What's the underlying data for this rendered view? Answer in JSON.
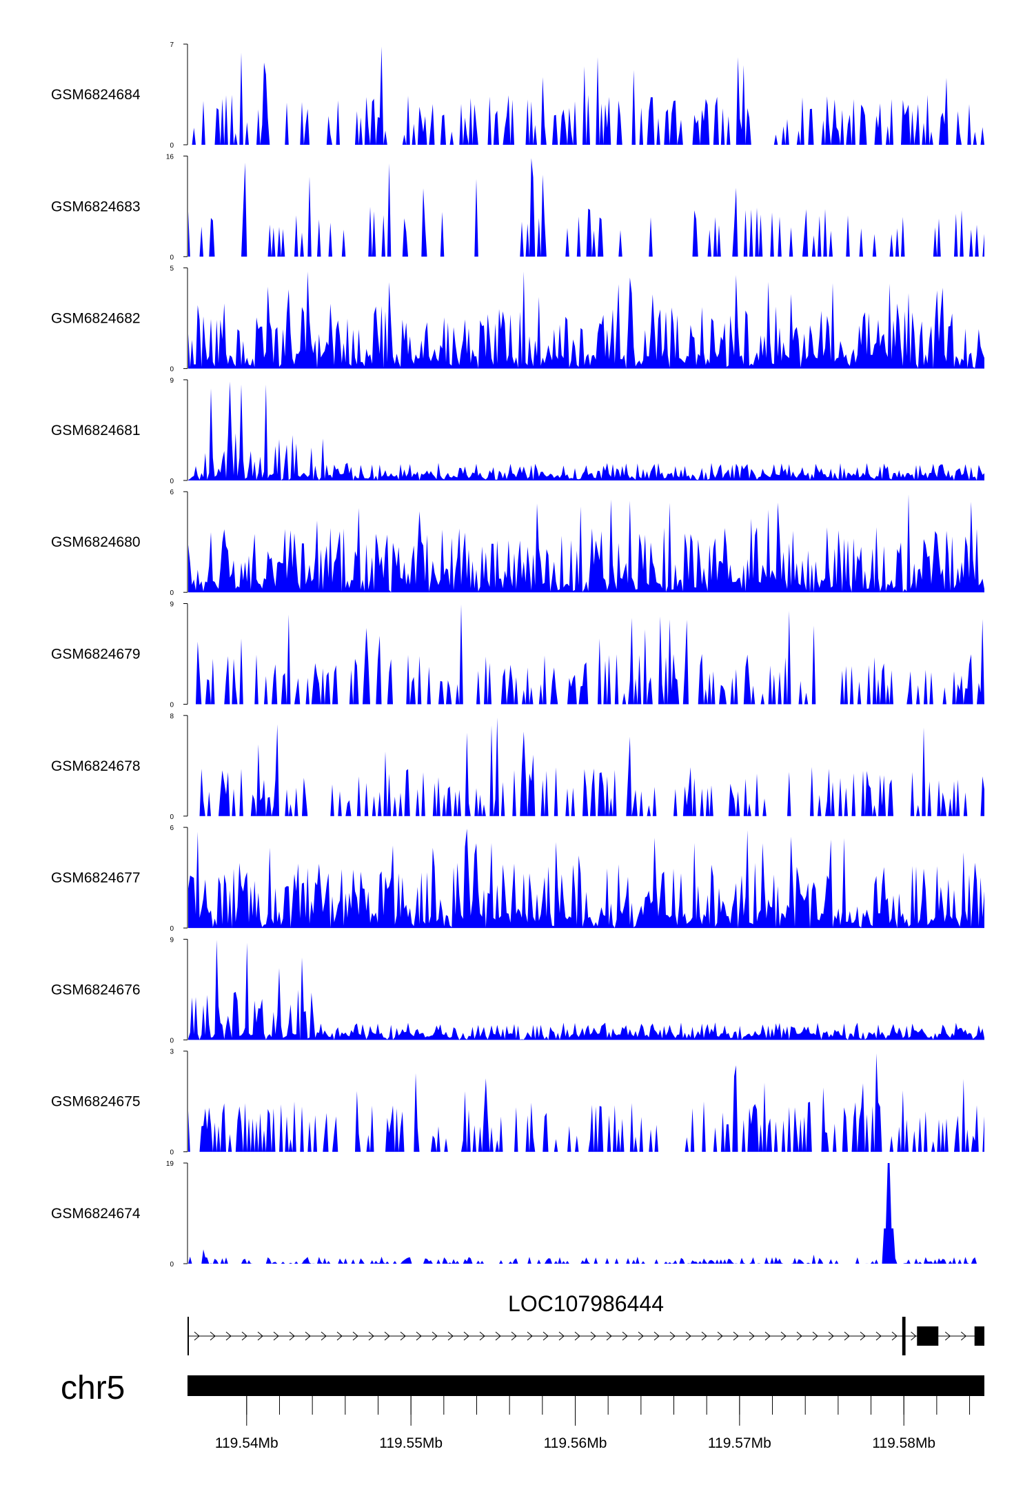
{
  "chart_data": {
    "type": "area",
    "title": "",
    "color": "#0000ff",
    "x_range": [
      119.5364,
      119.5849
    ],
    "x_unit": "Mb",
    "tracks": [
      {
        "name": "GSM6824684",
        "ymax": 7,
        "ylabel_top": "7",
        "ylabel_bottom": "0",
        "pattern": "spiky"
      },
      {
        "name": "GSM6824683",
        "ymax": 16,
        "ylabel_top": "16",
        "ylabel_bottom": "0",
        "pattern": "sparse"
      },
      {
        "name": "GSM6824682",
        "ymax": 5,
        "ylabel_top": "5",
        "ylabel_bottom": "0",
        "pattern": "dense"
      },
      {
        "name": "GSM6824681",
        "ymax": 9,
        "ylabel_top": "9",
        "ylabel_bottom": "0",
        "pattern": "left-heavy"
      },
      {
        "name": "GSM6824680",
        "ymax": 6,
        "ylabel_top": "6",
        "ylabel_bottom": "0",
        "pattern": "dense"
      },
      {
        "name": "GSM6824679",
        "ymax": 9,
        "ylabel_top": "9",
        "ylabel_bottom": "0",
        "pattern": "spiky"
      },
      {
        "name": "GSM6824678",
        "ymax": 8,
        "ylabel_top": "8",
        "ylabel_bottom": "0",
        "pattern": "spiky"
      },
      {
        "name": "GSM6824677",
        "ymax": 6,
        "ylabel_top": "6",
        "ylabel_bottom": "0",
        "pattern": "dense"
      },
      {
        "name": "GSM6824676",
        "ymax": 9,
        "ylabel_top": "9",
        "ylabel_bottom": "0",
        "pattern": "left-heavy"
      },
      {
        "name": "GSM6824675",
        "ymax": 3,
        "ylabel_top": "3",
        "ylabel_bottom": "0",
        "pattern": "spiky"
      },
      {
        "name": "GSM6824674",
        "ymax": 19,
        "ylabel_top": "19",
        "ylabel_bottom": "0",
        "pattern": "flat-peak"
      }
    ],
    "gene": {
      "name": "LOC107986444",
      "start": 119.5364,
      "end": 119.5849,
      "exons": [
        [
          119.5364,
          119.5365
        ],
        [
          119.5799,
          119.5801
        ],
        [
          119.5808,
          119.5821
        ],
        [
          119.5843,
          119.5849
        ]
      ]
    },
    "chromosome": {
      "name": "chr5",
      "start": 119.5364,
      "end": 119.5849
    },
    "x_ticks": [
      119.54,
      119.55,
      119.56,
      119.57,
      119.58
    ],
    "x_tick_labels": [
      "119.54Mb",
      "119.55Mb",
      "119.56Mb",
      "119.57Mb",
      "119.58Mb"
    ],
    "minor_ticks": [
      119.54,
      119.542,
      119.544,
      119.546,
      119.548,
      119.55,
      119.552,
      119.554,
      119.556,
      119.558,
      119.56,
      119.562,
      119.564,
      119.566,
      119.568,
      119.57,
      119.572,
      119.574,
      119.576,
      119.578,
      119.58,
      119.582,
      119.584
    ]
  }
}
